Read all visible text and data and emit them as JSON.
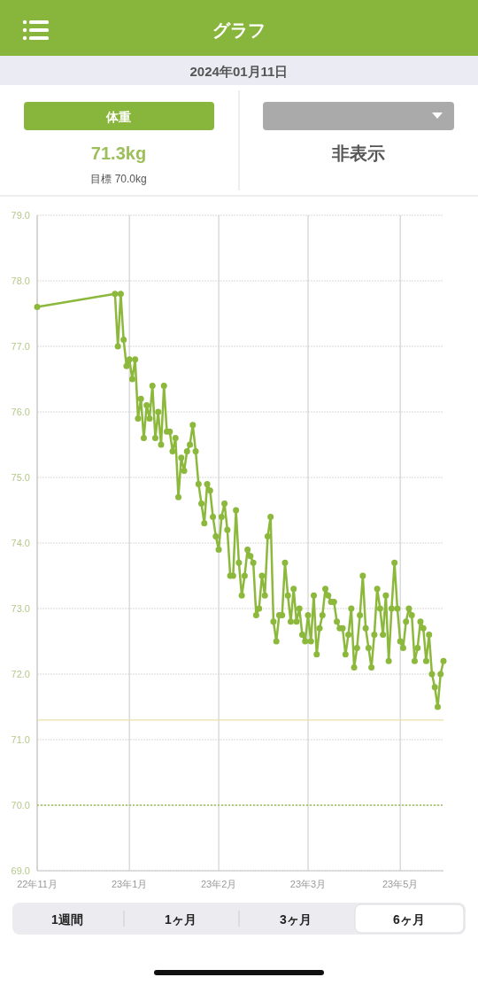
{
  "chart_data": {
    "type": "line",
    "title": "グラフ",
    "subtitle": "2024年01月11日",
    "annotations": [
      "体重",
      "71.3kg",
      "目標 70.0kg",
      "非表示",
      "1週間",
      "1ヶ月",
      "3ヶ月",
      "6ヶ月"
    ],
    "categories": [
      "22年11月",
      null,
      null,
      null,
      null,
      null,
      null,
      null,
      null,
      null,
      null,
      null,
      null,
      null,
      null,
      null,
      null,
      null,
      null,
      null,
      null,
      null,
      null,
      null,
      null,
      null,
      null,
      null,
      null,
      null,
      null,
      null,
      "23年1月",
      null,
      null,
      null,
      null,
      null,
      null,
      null,
      null,
      null,
      null,
      null,
      null,
      null,
      null,
      null,
      null,
      null,
      null,
      null,
      null,
      null,
      null,
      null,
      null,
      null,
      null,
      null,
      null,
      null,
      null,
      "23年2月",
      null,
      null,
      null,
      null,
      null,
      null,
      null,
      null,
      null,
      null,
      null,
      null,
      null,
      null,
      null,
      null,
      null,
      null,
      null,
      null,
      null,
      null,
      null,
      null,
      null,
      null,
      null,
      null,
      null,
      null,
      "23年3月",
      null,
      null,
      null,
      null,
      null,
      null,
      null,
      null,
      null,
      null,
      null,
      null,
      null,
      null,
      null,
      null,
      null,
      null,
      null,
      null,
      null,
      null,
      null,
      null,
      null,
      null,
      null,
      null,
      null,
      null,
      null,
      "23年5月",
      null,
      null,
      null,
      null,
      null,
      null,
      null,
      null,
      null,
      null,
      null,
      null,
      null,
      null,
      null
    ],
    "values": [
      77.6,
      null,
      null,
      null,
      null,
      null,
      null,
      null,
      null,
      null,
      null,
      null,
      null,
      null,
      null,
      null,
      null,
      null,
      null,
      null,
      null,
      null,
      null,
      null,
      null,
      null,
      null,
      77.8,
      77.0,
      77.8,
      77.1,
      76.7,
      76.8,
      76.5,
      76.8,
      75.9,
      76.2,
      75.6,
      76.1,
      75.9,
      76.4,
      75.6,
      76.0,
      75.5,
      76.4,
      75.7,
      75.7,
      75.4,
      75.6,
      74.7,
      75.3,
      75.1,
      75.4,
      75.5,
      75.8,
      75.4,
      74.9,
      74.6,
      74.3,
      74.9,
      74.8,
      74.4,
      74.1,
      73.9,
      74.4,
      74.6,
      74.2,
      73.5,
      73.5,
      74.5,
      73.7,
      73.2,
      73.5,
      73.9,
      73.8,
      73.7,
      72.9,
      73.0,
      73.5,
      73.2,
      74.1,
      74.4,
      72.8,
      72.5,
      72.9,
      72.9,
      73.7,
      73.2,
      72.8,
      73.3,
      72.8,
      73.0,
      72.6,
      72.5,
      72.9,
      72.5,
      73.2,
      72.3,
      72.7,
      72.9,
      73.3,
      73.2,
      73.1,
      73.1,
      72.8,
      72.7,
      72.7,
      72.3,
      72.6,
      73.0,
      72.1,
      72.4,
      72.9,
      73.5,
      72.7,
      72.4,
      72.1,
      72.6,
      73.3,
      73.0,
      72.6,
      73.2,
      72.2,
      73.0,
      73.7,
      73.0,
      72.5,
      72.4,
      72.8,
      73.0,
      72.9,
      72.2,
      72.4,
      72.8,
      72.7,
      72.2,
      72.6,
      72.0,
      71.8,
      71.5,
      72.0,
      72.2
    ],
    "color": "#8cb83c",
    "marker": "circle",
    "line_style": "solid",
    "grid": true,
    "legend": false,
    "ylim": [
      69,
      79
    ],
    "yticks": [
      {
        "value": 69,
        "label": "69.0"
      },
      {
        "value": 70,
        "label": "70.0"
      },
      {
        "value": 71,
        "label": "71.0"
      },
      {
        "value": 72,
        "label": "72.0"
      },
      {
        "value": 73,
        "label": "73.0"
      },
      {
        "value": 74,
        "label": "74.0"
      },
      {
        "value": 75,
        "label": "75.0"
      },
      {
        "value": 76,
        "label": "76.0"
      },
      {
        "value": 77,
        "label": "77.0"
      },
      {
        "value": 78,
        "label": "78.0"
      },
      {
        "value": 79,
        "label": "79.0"
      }
    ],
    "ref_lines": [
      {
        "axis": "y",
        "value": 71.3,
        "color": "#e8dfa8",
        "line_style": "solid"
      },
      {
        "axis": "y",
        "value": 70.0,
        "color": "#9cbf5a",
        "line_style": "dotted"
      }
    ]
  }
}
